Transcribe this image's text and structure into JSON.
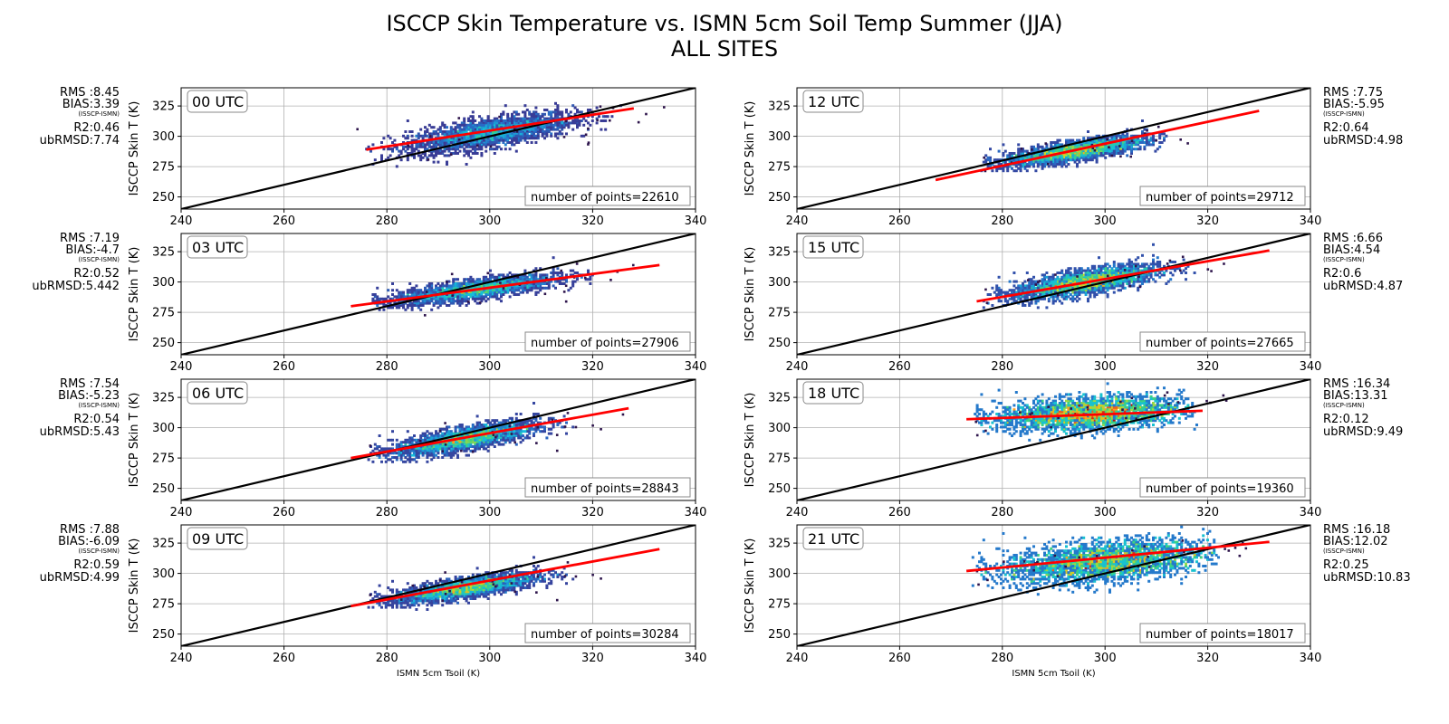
{
  "figure": {
    "title_line1": "ISCCP Skin Temperature vs. ISMN 5cm Soil Temp Summer (JJA)",
    "title_line2": "ALL SITES"
  },
  "chart_data": [
    {
      "type": "scatter",
      "panel": "00 UTC",
      "column": "left",
      "xlabel": "",
      "ylabel": "ISCCP Skin T (K)",
      "xlim": [
        240,
        340
      ],
      "ylim": [
        240,
        340
      ],
      "xticks": [
        240,
        260,
        280,
        300,
        320,
        340
      ],
      "yticks": [
        250,
        275,
        300,
        325
      ],
      "grid": true,
      "density": {
        "x_range": [
          276,
          326
        ],
        "y_range": [
          270,
          335
        ],
        "center": [
          300,
          303
        ],
        "spread": [
          8,
          8
        ],
        "corr": 0.68,
        "max_color": "cyan-green"
      },
      "regression_line": {
        "x": [
          276,
          328
        ],
        "y": [
          289,
          323
        ]
      },
      "one_to_one": true,
      "n_points_label": "number of points=22610",
      "stats": {
        "rms": "RMS :8.45",
        "bias": "BIAS:3.39",
        "bias_note": "(ISSCP-ISMN)",
        "r2": "R2:0.46",
        "ubrmsd": "ubRMSD:7.74"
      }
    },
    {
      "type": "scatter",
      "panel": "03 UTC",
      "column": "left",
      "xlabel": "",
      "ylabel": "ISCCP Skin T (K)",
      "xlim": [
        240,
        340
      ],
      "ylim": [
        240,
        340
      ],
      "xticks": [
        240,
        260,
        280,
        300,
        320,
        340
      ],
      "yticks": [
        250,
        275,
        300,
        325
      ],
      "grid": true,
      "density": {
        "x_range": [
          277,
          320
        ],
        "y_range": [
          272,
          322
        ],
        "center": [
          297,
          294
        ],
        "spread": [
          8,
          6
        ],
        "corr": 0.75,
        "max_color": "yellow-orange"
      },
      "regression_line": {
        "x": [
          273,
          333
        ],
        "y": [
          280,
          314
        ]
      },
      "one_to_one": true,
      "n_points_label": "number of points=27906",
      "stats": {
        "rms": "RMS :7.19",
        "bias": "BIAS:-4.7",
        "bias_note": "(ISSCP-ISMN)",
        "r2": "R2:0.52",
        "ubrmsd": "ubRMSD:5.442"
      }
    },
    {
      "type": "scatter",
      "panel": "06 UTC",
      "column": "left",
      "xlabel": "",
      "ylabel": "ISCCP Skin T (K)",
      "xlim": [
        240,
        340
      ],
      "ylim": [
        240,
        340
      ],
      "xticks": [
        240,
        260,
        280,
        300,
        320,
        340
      ],
      "yticks": [
        250,
        275,
        300,
        325
      ],
      "grid": true,
      "density": {
        "x_range": [
          276,
          318
        ],
        "y_range": [
          262,
          322
        ],
        "center": [
          295,
          291
        ],
        "spread": [
          7,
          7
        ],
        "corr": 0.75,
        "max_color": "orange"
      },
      "regression_line": {
        "x": [
          273,
          327
        ],
        "y": [
          275,
          316
        ]
      },
      "one_to_one": true,
      "n_points_label": "number of points=28843",
      "stats": {
        "rms": "RMS :7.54",
        "bias": "BIAS:-5.23",
        "bias_note": "(ISSCP-ISMN)",
        "r2": "R2:0.54",
        "ubrmsd": "ubRMSD:5.43"
      }
    },
    {
      "type": "scatter",
      "panel": "09 UTC",
      "column": "left",
      "xlabel": "ISMN 5cm Tsoil (K)",
      "ylabel": "ISCCP Skin T (K)",
      "xlim": [
        240,
        340
      ],
      "ylim": [
        240,
        340
      ],
      "xticks": [
        240,
        260,
        280,
        300,
        320,
        340
      ],
      "yticks": [
        250,
        275,
        300,
        325
      ],
      "grid": true,
      "density": {
        "x_range": [
          276,
          318
        ],
        "y_range": [
          262,
          322
        ],
        "center": [
          295,
          288
        ],
        "spread": [
          7,
          6
        ],
        "corr": 0.75,
        "max_color": "orange"
      },
      "regression_line": {
        "x": [
          273,
          333
        ],
        "y": [
          273,
          320
        ]
      },
      "one_to_one": true,
      "n_points_label": "number of points=30284",
      "stats": {
        "rms": "RMS :7.88",
        "bias": "BIAS:-6.09",
        "bias_note": "(ISSCP-ISMN)",
        "r2": "R2:0.59",
        "ubrmsd": "ubRMSD:4.99"
      }
    },
    {
      "type": "scatter",
      "panel": "12 UTC",
      "column": "right",
      "xlabel": "",
      "ylabel": "ISCCP Skin T (K)",
      "xlim": [
        240,
        340
      ],
      "ylim": [
        240,
        340
      ],
      "xticks": [
        240,
        260,
        280,
        300,
        320,
        340
      ],
      "yticks": [
        250,
        275,
        300,
        325
      ],
      "grid": true,
      "density": {
        "x_range": [
          276,
          312
        ],
        "y_range": [
          262,
          318
        ],
        "center": [
          294,
          288
        ],
        "spread": [
          7,
          6
        ],
        "corr": 0.75,
        "max_color": "orange"
      },
      "regression_line": {
        "x": [
          267,
          330
        ],
        "y": [
          264,
          321
        ]
      },
      "one_to_one": true,
      "n_points_label": "number of points=29712",
      "stats": {
        "rms": "RMS :7.75",
        "bias": "BIAS:-5.95",
        "bias_note": "(ISSCP-ISMN)",
        "r2": "R2:0.64",
        "ubrmsd": "ubRMSD:4.98"
      }
    },
    {
      "type": "scatter",
      "panel": "15 UTC",
      "column": "right",
      "xlabel": "",
      "ylabel": "ISCCP Skin T (K)",
      "xlim": [
        240,
        340
      ],
      "ylim": [
        240,
        340
      ],
      "xticks": [
        240,
        260,
        280,
        300,
        320,
        340
      ],
      "yticks": [
        250,
        275,
        300,
        325
      ],
      "grid": true,
      "density": {
        "x_range": [
          276,
          318
        ],
        "y_range": [
          272,
          334
        ],
        "center": [
          296,
          300
        ],
        "spread": [
          7,
          7
        ],
        "corr": 0.7,
        "max_color": "orange-red"
      },
      "regression_line": {
        "x": [
          275,
          332
        ],
        "y": [
          284,
          326
        ]
      },
      "one_to_one": true,
      "n_points_label": "number of points=27665",
      "stats": {
        "rms": "RMS :6.66",
        "bias": "BIAS:4.54",
        "bias_note": "(ISSCP-ISMN)",
        "r2": "R2:0.6",
        "ubrmsd": "ubRMSD:4.87"
      }
    },
    {
      "type": "scatter",
      "panel": "18 UTC",
      "column": "right",
      "xlabel": "",
      "ylabel": "ISCCP Skin T (K)",
      "xlim": [
        240,
        340
      ],
      "ylim": [
        240,
        340
      ],
      "xticks": [
        240,
        260,
        280,
        300,
        320,
        340
      ],
      "yticks": [
        250,
        275,
        300,
        325
      ],
      "grid": true,
      "density": {
        "x_range": [
          274,
          318
        ],
        "y_range": [
          284,
          338
        ],
        "center": [
          297,
          312
        ],
        "spread": [
          9,
          7
        ],
        "corr": 0.3,
        "max_color": "dark-red"
      },
      "regression_line": {
        "x": [
          273,
          319
        ],
        "y": [
          307,
          314
        ]
      },
      "one_to_one": true,
      "n_points_label": "number of points=19360",
      "stats": {
        "rms": "RMS :16.34",
        "bias": "BIAS:13.31",
        "bias_note": "(ISSCP-ISMN)",
        "r2": "R2:0.12",
        "ubrmsd": "ubRMSD:9.49"
      }
    },
    {
      "type": "scatter",
      "panel": "21 UTC",
      "column": "right",
      "xlabel": "ISMN 5cm Tsoil (K)",
      "ylabel": "ISCCP Skin T (K)",
      "xlim": [
        240,
        340
      ],
      "ylim": [
        240,
        340
      ],
      "xticks": [
        240,
        260,
        280,
        300,
        320,
        340
      ],
      "yticks": [
        250,
        275,
        300,
        325
      ],
      "grid": true,
      "density": {
        "x_range": [
          274,
          322
        ],
        "y_range": [
          282,
          338
        ],
        "center": [
          300,
          310
        ],
        "spread": [
          10,
          9
        ],
        "corr": 0.4,
        "max_color": "dark-red"
      },
      "regression_line": {
        "x": [
          273,
          332
        ],
        "y": [
          302,
          326
        ]
      },
      "one_to_one": true,
      "n_points_label": "number of points=18017",
      "stats": {
        "rms": "RMS :16.18",
        "bias": "BIAS:12.02",
        "bias_note": "(ISSCP-ISMN)",
        "r2": "R2:0.25",
        "ubrmsd": "ubRMSD:10.83"
      }
    }
  ]
}
